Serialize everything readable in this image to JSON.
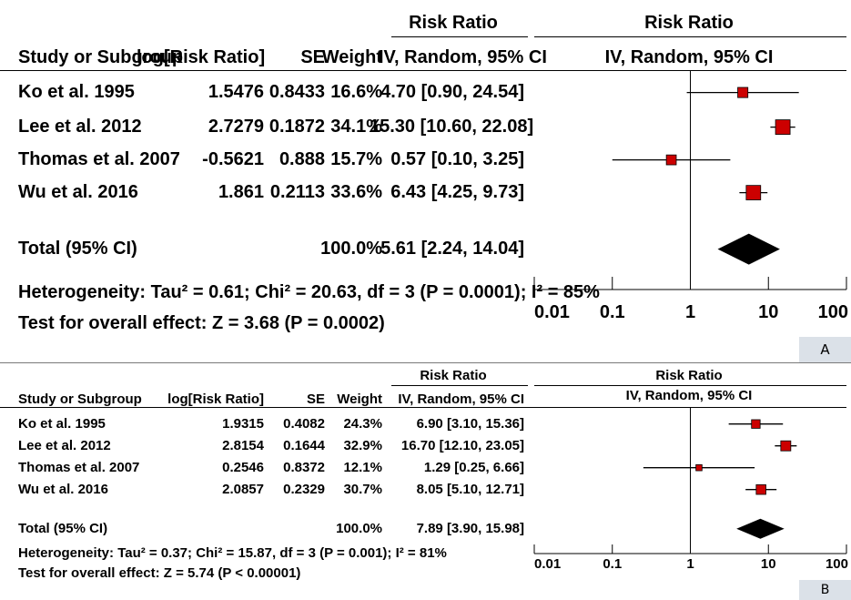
{
  "chart_data": [
    {
      "type": "forest",
      "panel_label": "A",
      "group_header": "Risk Ratio",
      "plot_header": "Risk Ratio",
      "plot_subheader": "IV, Random, 95% CI",
      "columns": [
        "Study or Subgroup",
        "log[Risk Ratio]",
        "SE",
        "Weight",
        "IV, Random, 95% CI"
      ],
      "studies": [
        {
          "name": "Ko et al. 1995",
          "log_rr": "1.5476",
          "se": "0.8433",
          "weight": "16.6%",
          "ci_text": "4.70 [0.90, 24.54]",
          "rr": 4.7,
          "lo": 0.9,
          "hi": 24.54,
          "w": 16.6
        },
        {
          "name": "Lee et al. 2012",
          "log_rr": "2.7279",
          "se": "0.1872",
          "weight": "34.1%",
          "ci_text": "15.30 [10.60, 22.08]",
          "rr": 15.3,
          "lo": 10.6,
          "hi": 22.08,
          "w": 34.1
        },
        {
          "name": "Thomas et al. 2007",
          "log_rr": "-0.5621",
          "se": "0.888",
          "weight": "15.7%",
          "ci_text": "0.57 [0.10, 3.25]",
          "rr": 0.57,
          "lo": 0.1,
          "hi": 3.25,
          "w": 15.7
        },
        {
          "name": "Wu et al. 2016",
          "log_rr": "1.861",
          "se": "0.2113",
          "weight": "33.6%",
          "ci_text": "6.43 [4.25, 9.73]",
          "rr": 6.43,
          "lo": 4.25,
          "hi": 9.73,
          "w": 33.6
        }
      ],
      "total": {
        "label": "Total (95% CI)",
        "weight": "100.0%",
        "ci_text": "5.61 [2.24, 14.04]",
        "rr": 5.61,
        "lo": 2.24,
        "hi": 14.04
      },
      "heterogeneity": "Heterogeneity: Tau² = 0.61; Chi² = 20.63, df = 3 (P = 0.0001); I² = 85%",
      "overall_effect": "Test for overall effect: Z = 3.68 (P = 0.0002)",
      "x_axis": {
        "scale": "log",
        "range": [
          0.01,
          100
        ],
        "ticks": [
          0.01,
          0.1,
          1,
          10,
          100
        ],
        "tick_labels": [
          "0.01",
          "0.1",
          "1",
          "10",
          "100"
        ]
      }
    },
    {
      "type": "forest",
      "panel_label": "B",
      "group_header": "Risk Ratio",
      "plot_header": "Risk Ratio",
      "plot_subheader": "IV, Random, 95% CI",
      "columns": [
        "Study or Subgroup",
        "log[Risk Ratio]",
        "SE",
        "Weight",
        "IV, Random, 95% CI"
      ],
      "studies": [
        {
          "name": "Ko et al. 1995",
          "log_rr": "1.9315",
          "se": "0.4082",
          "weight": "24.3%",
          "ci_text": "6.90 [3.10, 15.36]",
          "rr": 6.9,
          "lo": 3.1,
          "hi": 15.36,
          "w": 24.3
        },
        {
          "name": "Lee et al. 2012",
          "log_rr": "2.8154",
          "se": "0.1644",
          "weight": "32.9%",
          "ci_text": "16.70 [12.10, 23.05]",
          "rr": 16.7,
          "lo": 12.1,
          "hi": 23.05,
          "w": 32.9
        },
        {
          "name": "Thomas et al. 2007",
          "log_rr": "0.2546",
          "se": "0.8372",
          "weight": "12.1%",
          "ci_text": "1.29 [0.25, 6.66]",
          "rr": 1.29,
          "lo": 0.25,
          "hi": 6.66,
          "w": 12.1
        },
        {
          "name": "Wu et al. 2016",
          "log_rr": "2.0857",
          "se": "0.2329",
          "weight": "30.7%",
          "ci_text": "8.05 [5.10, 12.71]",
          "rr": 8.05,
          "lo": 5.1,
          "hi": 12.71,
          "w": 30.7
        }
      ],
      "total": {
        "label": "Total (95% CI)",
        "weight": "100.0%",
        "ci_text": "7.89 [3.90, 15.98]",
        "rr": 7.89,
        "lo": 3.9,
        "hi": 15.98
      },
      "heterogeneity": "Heterogeneity: Tau² = 0.37; Chi² = 15.87, df = 3 (P = 0.001); I² = 81%",
      "overall_effect": "Test for overall effect: Z = 5.74 (P < 0.00001)",
      "x_axis": {
        "scale": "log",
        "range": [
          0.01,
          100
        ],
        "ticks": [
          0.01,
          0.1,
          1,
          10,
          100
        ],
        "tick_labels": [
          "0.01",
          "0.1",
          "1",
          "10",
          "100"
        ]
      }
    }
  ],
  "colors": {
    "marker": "#cc0000",
    "diamond": "#000000",
    "panel_tag_bg": "#dbe1e8",
    "divider": "#7a7a7a"
  }
}
